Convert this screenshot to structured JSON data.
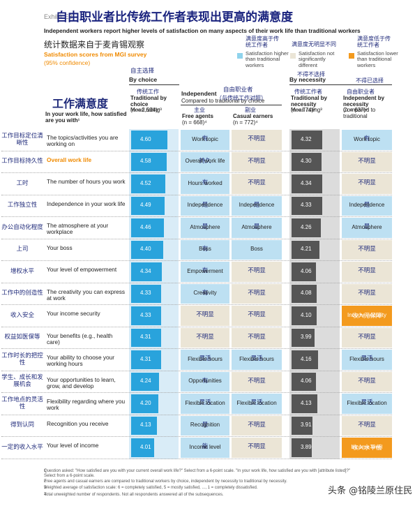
{
  "header": {
    "exhibit": "Exhibit E3",
    "title_cn": "自由职业者比传统工作者表现出更高的满意度",
    "subtitle": "Independent workers report higher levels of satisfaction on many aspects of their work life than traditional workers",
    "source_cn": "统计数据来自于麦肯锡观察",
    "source": "Satisfaction scores from MGI survey",
    "confidence": "(95% confidence)"
  },
  "legend": [
    {
      "label_cn": "满意度高于传统工作者",
      "label": "Satisfaction higher than traditional workers",
      "color": "#8fd3ec"
    },
    {
      "label_cn": "满意度无明显不同",
      "label": "Satisfaction not significantly different",
      "color": "#ebe5d6",
      "note_cn": "不得不选择"
    },
    {
      "label_cn": "满意度低于传统工作者",
      "label": "Satisfaction lower than traditional workers",
      "color": "#f39a1e",
      "note_cn": "不得已选择"
    }
  ],
  "groups": {
    "choice_cn": "自主选择",
    "choice": "By choice",
    "independent": "Independent",
    "independent_sub": "Compared to traditional by choice",
    "independent_cn": "自由职业者",
    "independent_cn_sub": "（与传统工作对照）",
    "necessity": "By necessity"
  },
  "question_cn": "工作满意度",
  "question": "In your work life, how satisfied are you with¹",
  "columns": {
    "choice": {
      "cn": "传统工作",
      "title": "Traditional by choice",
      "sub": "Mean rating³",
      "n": "(n = 2,594)⁴"
    },
    "free": {
      "cn": "主业",
      "title": "Free agents",
      "n": "(n = 668)⁴"
    },
    "casual": {
      "cn": "副业",
      "title": "Casual earners",
      "n": "(n = 772)⁴"
    },
    "necessity": {
      "cn": "传统工作者",
      "title": "Traditional by necessity",
      "sub": "Mean rating³",
      "n": "(n = 774)⁴"
    },
    "indep": {
      "cn": "自由职业者",
      "title": "Independent by necessity",
      "sub": "Compared to traditional",
      "n": "(n = 637)⁴"
    }
  },
  "table": {
    "xlim": [
      3,
      5
    ],
    "choice_color": "#29a3dc",
    "necessity_color": "#555555",
    "rows": [
      {
        "cn": "工作目标定位清晰性",
        "item": "The topics/activities you are working on",
        "choice": 4.6,
        "choice_label": "4.60",
        "free": {
          "cn": "有",
          "en": "Work topic",
          "color": "#bde0f2"
        },
        "casual": {
          "cn": "不明显",
          "color": "#ebe5d6"
        },
        "necessity": 4.32,
        "necessity_label": "4.32",
        "indep": {
          "cn": "有",
          "en": "Work topic",
          "color": "#bde0f2"
        }
      },
      {
        "cn": "工作目标持久性",
        "item": "Overall work life",
        "highlight": "#f08a00",
        "choice": 4.58,
        "choice_label": "4.58",
        "free": {
          "cn": "持久",
          "en": "Overall work life",
          "color": "#bde0f2"
        },
        "casual": {
          "cn": "不明显",
          "color": "#ebe5d6"
        },
        "necessity": 4.3,
        "necessity_label": "4.30",
        "indep": {
          "cn": "不明显",
          "color": "#ebe5d6"
        }
      },
      {
        "cn": "工时",
        "item": "The number of hours you work",
        "choice": 4.52,
        "choice_label": "4.52",
        "free": {
          "cn": "有",
          "en": "Hours worked",
          "color": "#bde0f2"
        },
        "casual": {
          "cn": "不明显",
          "color": "#ebe5d6"
        },
        "necessity": 4.34,
        "necessity_label": "4.34",
        "indep": {
          "cn": "不明显",
          "color": "#ebe5d6"
        }
      },
      {
        "cn": "工作独立性",
        "item": "Independence in your work life",
        "choice": 4.49,
        "choice_label": "4.49",
        "free": {
          "cn": "是",
          "en": "Independence",
          "color": "#bde0f2"
        },
        "casual": {
          "cn": "是",
          "en": "Independence",
          "color": "#bde0f2"
        },
        "necessity": 4.33,
        "necessity_label": "4.33",
        "indep": {
          "cn": "是",
          "en": "Independence",
          "color": "#bde0f2"
        }
      },
      {
        "cn": "办公自动化程度",
        "item": "The atmosphere at your workplace",
        "choice": 4.46,
        "choice_label": "4.46",
        "free": {
          "cn": "是",
          "en": "Atmosphere",
          "color": "#bde0f2"
        },
        "casual": {
          "cn": "是",
          "en": "Atmosphere",
          "color": "#bde0f2"
        },
        "necessity": 4.26,
        "necessity_label": "4.26",
        "indep": {
          "cn": "是",
          "en": "Atmosphere",
          "color": "#bde0f2"
        }
      },
      {
        "cn": "上司",
        "item": "Your boss",
        "choice": 4.4,
        "choice_label": "4.40",
        "free": {
          "cn": "有",
          "en": "Boss",
          "color": "#bde0f2"
        },
        "casual": {
          "en": "Boss",
          "color": "#bde0f2"
        },
        "necessity": 4.21,
        "necessity_label": "4.21",
        "indep": {
          "cn": "不明显",
          "color": "#ebe5d6"
        }
      },
      {
        "cn": "增权水平",
        "item": "Your level of empowerment",
        "choice": 4.34,
        "choice_label": "4.34",
        "free": {
          "cn": "有",
          "en": "Empowerment",
          "color": "#bde0f2"
        },
        "casual": {
          "cn": "不明显",
          "color": "#ebe5d6"
        },
        "necessity": 4.06,
        "necessity_label": "4.06",
        "indep": {
          "cn": "不明显",
          "color": "#ebe5d6"
        }
      },
      {
        "cn": "工作中的创造性",
        "item": "The creativity you can express at work",
        "choice": 4.33,
        "choice_label": "4.33",
        "free": {
          "cn": "有",
          "en": "Creativity",
          "color": "#bde0f2"
        },
        "casual": {
          "cn": "不明显",
          "color": "#ebe5d6"
        },
        "necessity": 4.08,
        "necessity_label": "4.08",
        "indep": {
          "cn": "不明显",
          "color": "#ebe5d6"
        }
      },
      {
        "cn": "收入安全",
        "item": "Your income security",
        "choice": 4.33,
        "choice_label": "4.33",
        "free": {
          "cn": "不明显",
          "color": "#ebe5d6"
        },
        "casual": {
          "cn": "不明显",
          "color": "#ebe5d6"
        },
        "necessity": 4.1,
        "necessity_label": "4.10",
        "indep": {
          "cn": "收入无保障",
          "en": "Income security",
          "color": "#f39a1e"
        }
      },
      {
        "cn": "权益如医保等",
        "item": "Your benefits (e.g., health care)",
        "choice": 4.31,
        "choice_label": "4.31",
        "free": {
          "cn": "不明显",
          "color": "#ebe5d6"
        },
        "casual": {
          "cn": "不明显",
          "color": "#ebe5d6"
        },
        "necessity": 3.99,
        "necessity_label": "3.99",
        "indep": {
          "cn": "不明显",
          "color": "#ebe5d6"
        }
      },
      {
        "cn": "工作时长的把控性",
        "item": "Your ability to choose your working hours",
        "choice": 4.31,
        "choice_label": "4.31",
        "free": {
          "cn": "灵活",
          "en": "Flexible hours",
          "color": "#bde0f2"
        },
        "casual": {
          "cn": "灵活",
          "en": "Flexible hours",
          "color": "#bde0f2"
        },
        "necessity": 4.16,
        "necessity_label": "4.16",
        "indep": {
          "cn": "灵活",
          "en": "Flexible hours",
          "color": "#bde0f2"
        }
      },
      {
        "cn": "学生、成长和发展机会",
        "item": "Your opportunities to learn, grow, and develop",
        "choice": 4.24,
        "choice_label": "4.24",
        "free": {
          "cn": "有",
          "en": "Opportunities",
          "color": "#bde0f2"
        },
        "casual": {
          "cn": "不明显",
          "color": "#ebe5d6"
        },
        "necessity": 4.06,
        "necessity_label": "4.06",
        "indep": {
          "cn": "不明显",
          "color": "#ebe5d6"
        }
      },
      {
        "cn": "工作地点的灵活性",
        "item": "Flexibility regarding where you work",
        "choice": 4.2,
        "choice_label": "4.20",
        "free": {
          "cn": "灵活",
          "en": "Flexible location",
          "color": "#bde0f2"
        },
        "casual": {
          "cn": "灵活",
          "en": "Flexible location",
          "color": "#bde0f2"
        },
        "necessity": 4.13,
        "necessity_label": "4.13",
        "indep": {
          "cn": "灵活",
          "en": "Flexible location",
          "color": "#bde0f2"
        }
      },
      {
        "cn": "得到认同",
        "item": "Recognition you receive",
        "choice": 4.13,
        "choice_label": "4.13",
        "free": {
          "cn": "是",
          "en": "Recognition",
          "color": "#bde0f2"
        },
        "casual": {
          "cn": "不明显",
          "color": "#ebe5d6"
        },
        "necessity": 3.91,
        "necessity_label": "3.91",
        "indep": {
          "cn": "不明显",
          "color": "#ebe5d6"
        }
      },
      {
        "cn": "一定的收入水平",
        "item": "Your level of income",
        "choice": 4.01,
        "choice_label": "4.01",
        "free": {
          "cn": "能",
          "en": "Income level",
          "color": "#bde0f2"
        },
        "casual": {
          "cn": "不明显",
          "color": "#ebe5d6"
        },
        "necessity": 3.89,
        "necessity_label": "3.89",
        "indep": {
          "cn": "收入水平低",
          "en": "Income level",
          "color": "#f39a1e"
        }
      }
    ]
  },
  "footnotes": [
    {
      "n": "1",
      "text": "Question asked: \"How satisfied are you with your current overall work life?\" Select from a 6-point scale. \"In your work life, how satisfied are you with [attribute listed]?\" Select from a 6-point scale."
    },
    {
      "n": "2",
      "text": "Free agents and casual earners are compared to traditional workers by choice, independent by necessity to traditional by necessity."
    },
    {
      "n": "3",
      "text": "Weighted average of satisfaction scale: 6 = completely satisfied, 5 = mostly satisfied, ..., 1 = completely dissatisfied."
    },
    {
      "n": "4",
      "text": "Total unweighted number of respondents. Not all respondents answered all of the subsequences."
    }
  ],
  "watermark": "头条 @铭陵兰原住民"
}
